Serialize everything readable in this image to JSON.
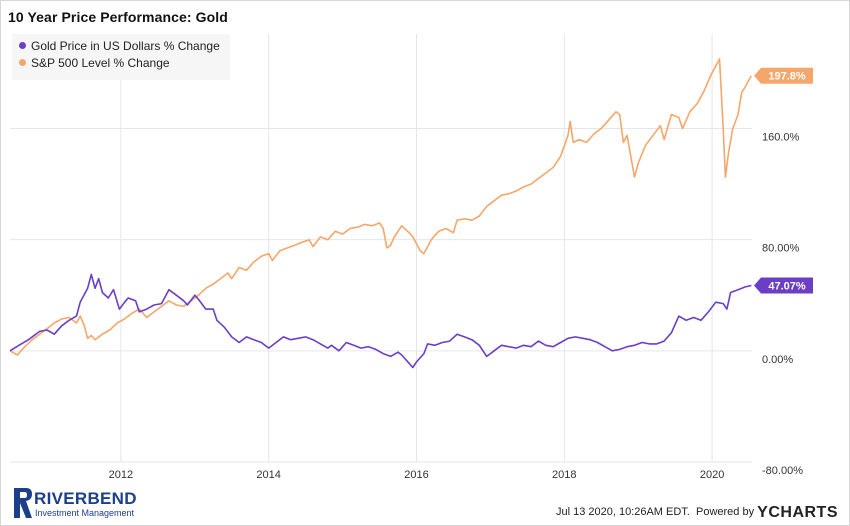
{
  "title": "10 Year Price Performance: Gold",
  "legend": {
    "gold_label": "Gold Price in US Dollars % Change",
    "sp_label": "S&P 500 Level % Change"
  },
  "colors": {
    "gold": "#6a3fc6",
    "sp": "#f5a66b",
    "grid": "#e6e6e6"
  },
  "footer": {
    "logo_word": "RIVERBEND",
    "logo_sub": "Investment Management",
    "timestamp": "Jul 13 2020, 10:26AM EDT.",
    "powered_by": "Powered by",
    "brand_y": "Y",
    "brand_rest": "CHARTS"
  },
  "chart_data": {
    "type": "line",
    "title": "10 Year Price Performance: Gold",
    "xlabel": "",
    "ylabel": "",
    "x_range": [
      2010.5,
      2020.54
    ],
    "ylim": [
      -80,
      228
    ],
    "y_ticks": [
      {
        "value": 160,
        "label": "160.0%"
      },
      {
        "value": 80,
        "label": "80.00%"
      },
      {
        "value": 0,
        "label": "0.00%"
      },
      {
        "value": -80,
        "label": "-80.00%"
      }
    ],
    "x_ticks": [
      {
        "value": 2012,
        "label": "2012"
      },
      {
        "value": 2014,
        "label": "2014"
      },
      {
        "value": 2016,
        "label": "2016"
      },
      {
        "value": 2018,
        "label": "2018"
      },
      {
        "value": 2020,
        "label": "2020"
      }
    ],
    "grid": true,
    "legend_position": "top-left",
    "series": [
      {
        "name": "Gold Price in US Dollars % Change",
        "color": "#6a3fc6",
        "last_label": "47.07%",
        "points": [
          [
            2010.5,
            0
          ],
          [
            2010.62,
            4
          ],
          [
            2010.75,
            8
          ],
          [
            2010.9,
            14
          ],
          [
            2011.0,
            15
          ],
          [
            2011.1,
            12
          ],
          [
            2011.2,
            18
          ],
          [
            2011.3,
            22
          ],
          [
            2011.4,
            25
          ],
          [
            2011.45,
            35
          ],
          [
            2011.55,
            45
          ],
          [
            2011.6,
            55
          ],
          [
            2011.65,
            45
          ],
          [
            2011.7,
            52
          ],
          [
            2011.75,
            42
          ],
          [
            2011.83,
            38
          ],
          [
            2011.9,
            44
          ],
          [
            2011.98,
            30
          ],
          [
            2012.05,
            35
          ],
          [
            2012.1,
            38
          ],
          [
            2012.2,
            36
          ],
          [
            2012.25,
            28
          ],
          [
            2012.35,
            30
          ],
          [
            2012.45,
            33
          ],
          [
            2012.55,
            34
          ],
          [
            2012.65,
            44
          ],
          [
            2012.75,
            40
          ],
          [
            2012.85,
            36
          ],
          [
            2012.9,
            33
          ],
          [
            2013.0,
            40
          ],
          [
            2013.05,
            37
          ],
          [
            2013.15,
            30
          ],
          [
            2013.25,
            30
          ],
          [
            2013.3,
            22
          ],
          [
            2013.4,
            17
          ],
          [
            2013.5,
            10
          ],
          [
            2013.6,
            6
          ],
          [
            2013.7,
            10
          ],
          [
            2013.8,
            8
          ],
          [
            2013.9,
            6
          ],
          [
            2014.0,
            2
          ],
          [
            2014.1,
            6
          ],
          [
            2014.2,
            10
          ],
          [
            2014.3,
            8
          ],
          [
            2014.4,
            9
          ],
          [
            2014.5,
            10
          ],
          [
            2014.6,
            8
          ],
          [
            2014.7,
            5
          ],
          [
            2014.8,
            2
          ],
          [
            2014.85,
            4
          ],
          [
            2014.95,
            0
          ],
          [
            2015.05,
            6
          ],
          [
            2015.15,
            4
          ],
          [
            2015.25,
            2
          ],
          [
            2015.35,
            3
          ],
          [
            2015.45,
            1
          ],
          [
            2015.55,
            -2
          ],
          [
            2015.65,
            -4
          ],
          [
            2015.75,
            -1
          ],
          [
            2015.8,
            -3
          ],
          [
            2015.9,
            -9
          ],
          [
            2015.95,
            -12
          ],
          [
            2016.0,
            -8
          ],
          [
            2016.1,
            -2
          ],
          [
            2016.15,
            5
          ],
          [
            2016.25,
            4
          ],
          [
            2016.35,
            6
          ],
          [
            2016.45,
            7
          ],
          [
            2016.55,
            12
          ],
          [
            2016.65,
            10
          ],
          [
            2016.75,
            8
          ],
          [
            2016.85,
            4
          ],
          [
            2016.95,
            -4
          ],
          [
            2017.0,
            -2
          ],
          [
            2017.05,
            0
          ],
          [
            2017.15,
            4
          ],
          [
            2017.25,
            3
          ],
          [
            2017.35,
            2
          ],
          [
            2017.45,
            4
          ],
          [
            2017.55,
            3
          ],
          [
            2017.65,
            7
          ],
          [
            2017.75,
            4
          ],
          [
            2017.85,
            3
          ],
          [
            2017.95,
            6
          ],
          [
            2018.05,
            9
          ],
          [
            2018.15,
            10
          ],
          [
            2018.25,
            9
          ],
          [
            2018.35,
            8
          ],
          [
            2018.45,
            6
          ],
          [
            2018.55,
            3
          ],
          [
            2018.65,
            0
          ],
          [
            2018.75,
            1
          ],
          [
            2018.85,
            3
          ],
          [
            2018.95,
            4
          ],
          [
            2019.05,
            6
          ],
          [
            2019.15,
            5
          ],
          [
            2019.25,
            5
          ],
          [
            2019.35,
            7
          ],
          [
            2019.45,
            13
          ],
          [
            2019.55,
            25
          ],
          [
            2019.65,
            22
          ],
          [
            2019.75,
            24
          ],
          [
            2019.85,
            22
          ],
          [
            2019.95,
            28
          ],
          [
            2020.05,
            35
          ],
          [
            2020.15,
            34
          ],
          [
            2020.2,
            30
          ],
          [
            2020.25,
            42
          ],
          [
            2020.35,
            44
          ],
          [
            2020.45,
            46
          ],
          [
            2020.53,
            47
          ]
        ]
      },
      {
        "name": "S&P 500 Level % Change",
        "color": "#f5a66b",
        "last_label": "197.8%",
        "points": [
          [
            2010.5,
            0
          ],
          [
            2010.6,
            -3
          ],
          [
            2010.7,
            3
          ],
          [
            2010.8,
            8
          ],
          [
            2010.9,
            12
          ],
          [
            2011.0,
            16
          ],
          [
            2011.1,
            20
          ],
          [
            2011.2,
            23
          ],
          [
            2011.3,
            24
          ],
          [
            2011.4,
            20
          ],
          [
            2011.45,
            25
          ],
          [
            2011.5,
            19
          ],
          [
            2011.55,
            9
          ],
          [
            2011.6,
            11
          ],
          [
            2011.65,
            8
          ],
          [
            2011.75,
            12
          ],
          [
            2011.85,
            15
          ],
          [
            2011.95,
            20
          ],
          [
            2012.05,
            23
          ],
          [
            2012.15,
            27
          ],
          [
            2012.25,
            30
          ],
          [
            2012.35,
            24
          ],
          [
            2012.45,
            28
          ],
          [
            2012.55,
            32
          ],
          [
            2012.65,
            36
          ],
          [
            2012.75,
            33
          ],
          [
            2012.85,
            32
          ],
          [
            2012.95,
            36
          ],
          [
            2013.05,
            40
          ],
          [
            2013.15,
            45
          ],
          [
            2013.25,
            48
          ],
          [
            2013.35,
            52
          ],
          [
            2013.45,
            56
          ],
          [
            2013.5,
            52
          ],
          [
            2013.6,
            60
          ],
          [
            2013.7,
            58
          ],
          [
            2013.8,
            64
          ],
          [
            2013.9,
            68
          ],
          [
            2014.0,
            70
          ],
          [
            2014.05,
            65
          ],
          [
            2014.15,
            72
          ],
          [
            2014.25,
            74
          ],
          [
            2014.35,
            76
          ],
          [
            2014.45,
            78
          ],
          [
            2014.55,
            80
          ],
          [
            2014.6,
            75
          ],
          [
            2014.7,
            82
          ],
          [
            2014.8,
            80
          ],
          [
            2014.9,
            86
          ],
          [
            2015.0,
            84
          ],
          [
            2015.1,
            88
          ],
          [
            2015.2,
            89
          ],
          [
            2015.3,
            91
          ],
          [
            2015.4,
            90
          ],
          [
            2015.5,
            92
          ],
          [
            2015.55,
            88
          ],
          [
            2015.6,
            74
          ],
          [
            2015.65,
            76
          ],
          [
            2015.7,
            82
          ],
          [
            2015.8,
            90
          ],
          [
            2015.9,
            85
          ],
          [
            2015.95,
            82
          ],
          [
            2016.05,
            72
          ],
          [
            2016.1,
            70
          ],
          [
            2016.2,
            80
          ],
          [
            2016.3,
            86
          ],
          [
            2016.4,
            88
          ],
          [
            2016.5,
            85
          ],
          [
            2016.55,
            94
          ],
          [
            2016.65,
            95
          ],
          [
            2016.75,
            94
          ],
          [
            2016.85,
            97
          ],
          [
            2016.95,
            104
          ],
          [
            2017.05,
            108
          ],
          [
            2017.15,
            112
          ],
          [
            2017.25,
            113
          ],
          [
            2017.35,
            115
          ],
          [
            2017.45,
            118
          ],
          [
            2017.55,
            120
          ],
          [
            2017.65,
            124
          ],
          [
            2017.75,
            128
          ],
          [
            2017.85,
            132
          ],
          [
            2017.95,
            140
          ],
          [
            2018.05,
            155
          ],
          [
            2018.08,
            165
          ],
          [
            2018.12,
            150
          ],
          [
            2018.2,
            152
          ],
          [
            2018.3,
            150
          ],
          [
            2018.4,
            156
          ],
          [
            2018.5,
            160
          ],
          [
            2018.6,
            166
          ],
          [
            2018.7,
            172
          ],
          [
            2018.75,
            170
          ],
          [
            2018.8,
            150
          ],
          [
            2018.85,
            155
          ],
          [
            2018.95,
            125
          ],
          [
            2019.0,
            135
          ],
          [
            2019.1,
            148
          ],
          [
            2019.2,
            155
          ],
          [
            2019.3,
            162
          ],
          [
            2019.35,
            152
          ],
          [
            2019.45,
            170
          ],
          [
            2019.55,
            168
          ],
          [
            2019.6,
            160
          ],
          [
            2019.7,
            172
          ],
          [
            2019.8,
            178
          ],
          [
            2019.9,
            188
          ],
          [
            2019.98,
            198
          ],
          [
            2020.05,
            205
          ],
          [
            2020.1,
            210
          ],
          [
            2020.12,
            190
          ],
          [
            2020.15,
            160
          ],
          [
            2020.18,
            125
          ],
          [
            2020.22,
            142
          ],
          [
            2020.28,
            160
          ],
          [
            2020.35,
            170
          ],
          [
            2020.4,
            186
          ],
          [
            2020.45,
            190
          ],
          [
            2020.53,
            198
          ]
        ]
      }
    ]
  }
}
